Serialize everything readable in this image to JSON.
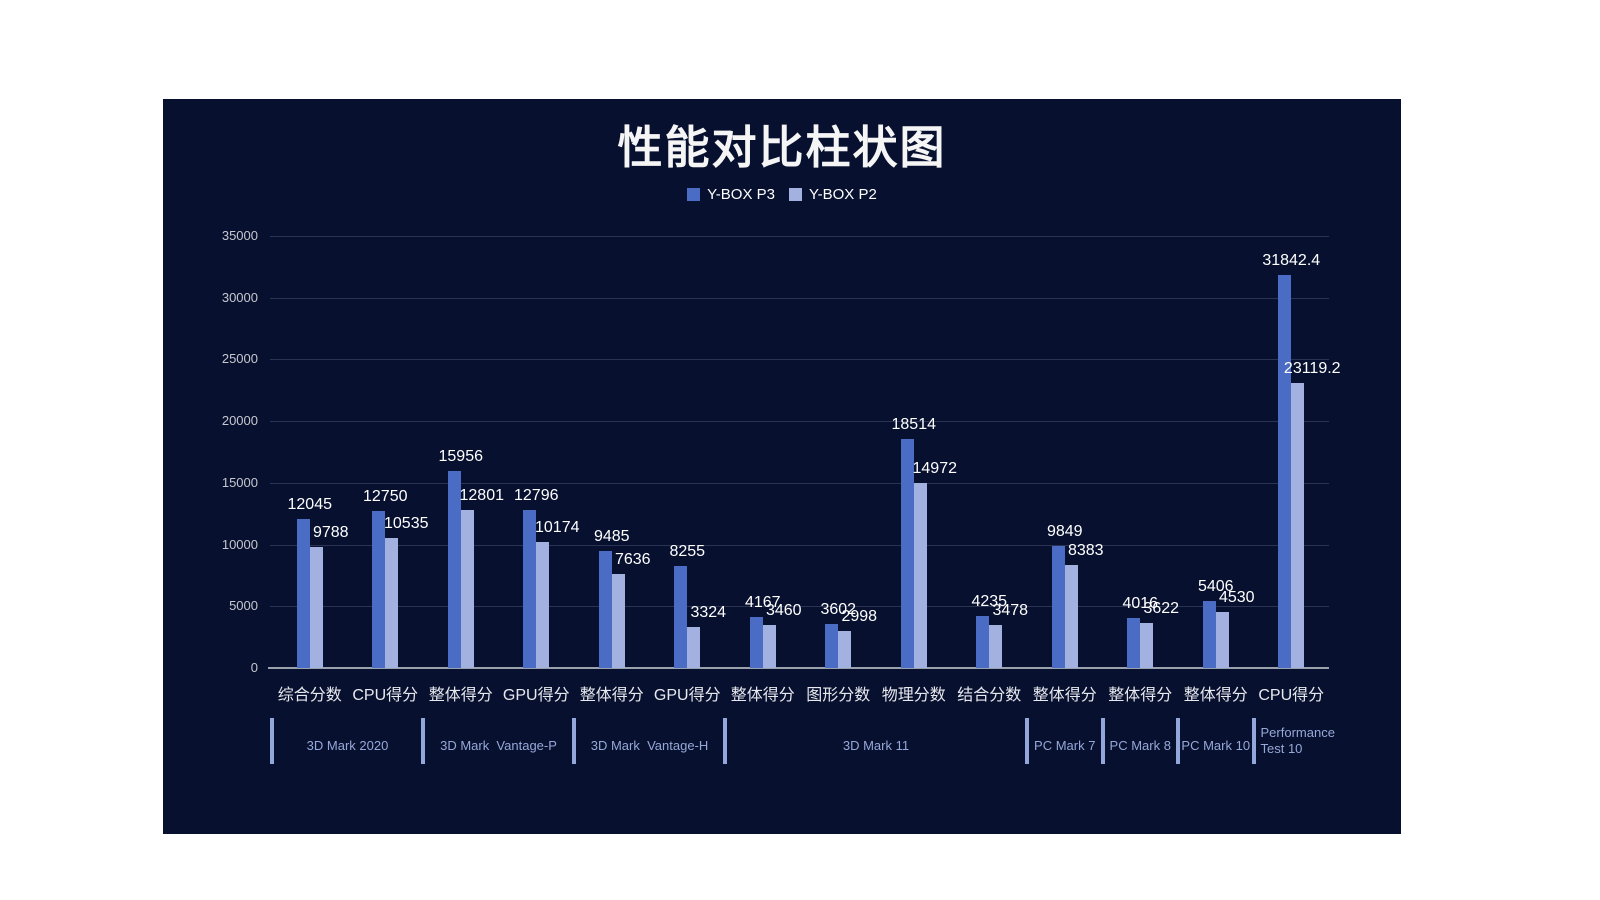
{
  "title": "性能对比柱状图",
  "legend": [
    {
      "name": "Y-BOX P3",
      "color": "#4a6cc4"
    },
    {
      "name": "Y-BOX P2",
      "color": "#a2b1e0"
    }
  ],
  "colors": {
    "panel_background": "#07102f",
    "series_p3": "#4a6cc4",
    "series_p2": "#a2b1e0",
    "gridline": "rgba(185,195,218,0.20)",
    "axis_line": "#99a1ad",
    "y_tick_text": "#c6c8cf",
    "category_text": "#e8e9ee",
    "value_text": "#ffffff",
    "group_text": "#96a8d8",
    "divider": "#93a7da",
    "title_text": "#f5f5f5"
  },
  "chart_data": {
    "type": "bar",
    "title": "性能对比柱状图",
    "xlabel": "",
    "ylabel": "",
    "ylim": [
      0,
      35000
    ],
    "ytick_step": 5000,
    "yticks": [
      0,
      5000,
      10000,
      15000,
      20000,
      25000,
      30000,
      35000
    ],
    "grid": true,
    "legend_position": "top",
    "categories": [
      "综合分数",
      "CPU得分",
      "整体得分",
      "GPU得分",
      "整体得分",
      "GPU得分",
      "整体得分",
      "图形分数",
      "物理分数",
      "结合分数",
      "整体得分",
      "整体得分",
      "整体得分",
      "CPU得分"
    ],
    "series": [
      {
        "name": "Y-BOX P3",
        "color": "#4a6cc4",
        "values": [
          12045,
          12750,
          15956,
          12796,
          9485,
          8255,
          4167,
          3602,
          18514,
          4235,
          9849,
          4016,
          5406,
          31842.4
        ]
      },
      {
        "name": "Y-BOX P2",
        "color": "#a2b1e0",
        "values": [
          9788,
          10535,
          12801,
          10174,
          7636,
          3324,
          3460,
          2998,
          14972,
          3478,
          8383,
          3622,
          4530,
          23119.2
        ]
      }
    ],
    "groups": [
      {
        "label": "3D Mark 2020",
        "from": 0,
        "to": 2
      },
      {
        "label": "3D Mark  Vantage-P",
        "from": 2,
        "to": 4
      },
      {
        "label": "3D Mark  Vantage-H",
        "from": 4,
        "to": 6
      },
      {
        "label": "3D Mark 11",
        "from": 6,
        "to": 10
      },
      {
        "label": "PC Mark 7",
        "from": 10,
        "to": 11
      },
      {
        "label": "PC Mark 8",
        "from": 11,
        "to": 12
      },
      {
        "label": "PC Mark 10",
        "from": 12,
        "to": 13
      },
      {
        "label": "Performance Test 10",
        "from": 13,
        "to": 14,
        "wrap": [
          "Performance",
          "Test 10"
        ],
        "align": "left"
      }
    ]
  }
}
